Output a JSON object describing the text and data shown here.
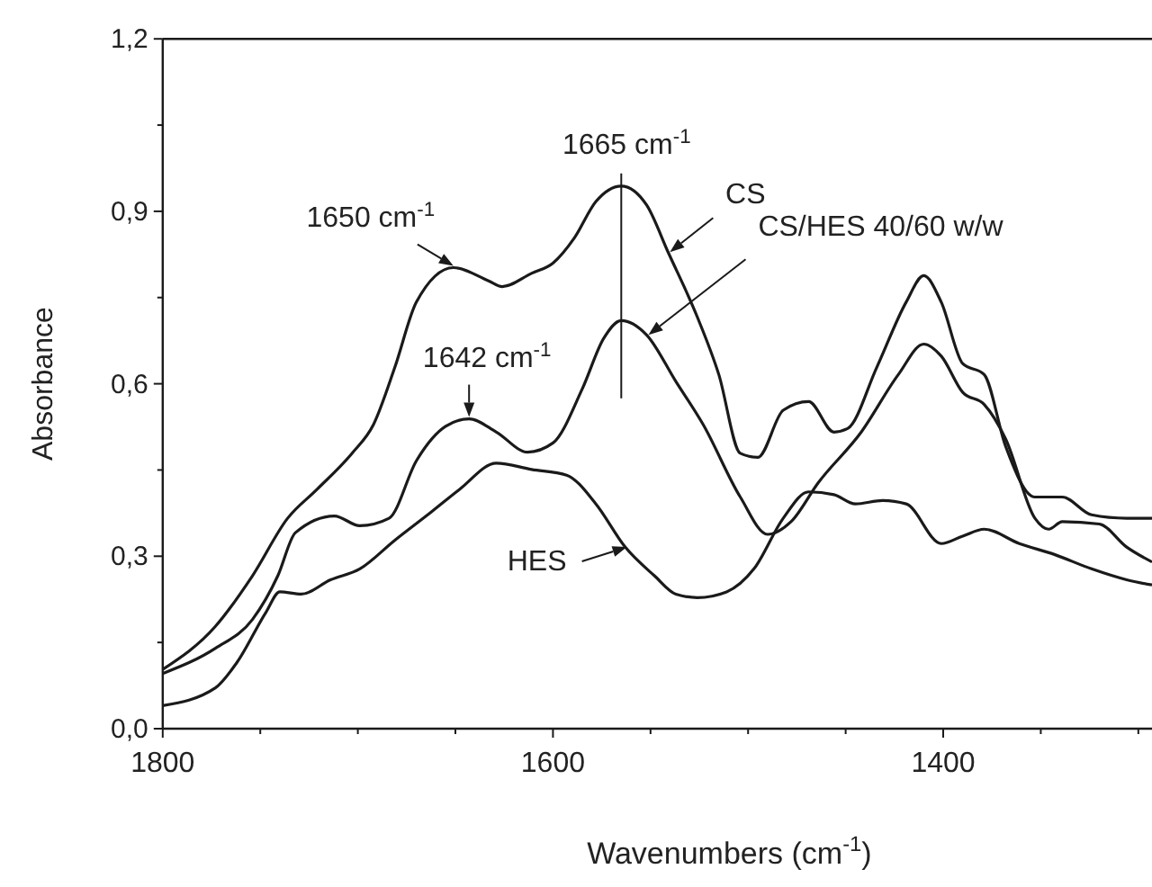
{
  "chart_data": {
    "type": "line",
    "xlabel": "Wavenumbers (cm$^{-1}$)",
    "ylabel": "Absorbance",
    "xlim": [
      1800,
      1293
    ],
    "ylim": [
      0,
      1.2
    ],
    "xticks": [
      1800,
      {
        "value": 1750,
        "label": null
      },
      1600,
      {
        "value": 1700,
        "label": null
      },
      {
        "value": 1650,
        "label": null
      },
      {
        "value": 1550,
        "label": null
      },
      {
        "value": 1500,
        "label": null
      },
      {
        "value": 1450,
        "label": null
      },
      1400,
      {
        "value": 1350,
        "label": null
      },
      {
        "value": 1300,
        "label": null
      }
    ],
    "yticks": [
      {
        "value": 0,
        "label": "0,0"
      },
      {
        "value": 0.15,
        "label": null
      },
      {
        "value": 0.3,
        "label": "0,3"
      },
      {
        "value": 0.45,
        "label": null
      },
      {
        "value": 0.6,
        "label": "0,6"
      },
      {
        "value": 0.75,
        "label": null
      },
      {
        "value": 0.9,
        "label": "0,9"
      },
      {
        "value": 1.05,
        "label": null
      },
      {
        "value": 1.2,
        "label": "1,2"
      }
    ],
    "series": [
      {
        "name": "CS",
        "color": "#1a1a1a",
        "x": [
          1800,
          1773,
          1754,
          1736,
          1721,
          1703,
          1692,
          1681,
          1670,
          1651,
          1633,
          1626,
          1611,
          1600,
          1589,
          1578,
          1565,
          1552,
          1541,
          1526,
          1515,
          1504,
          1495,
          1482,
          1469,
          1456,
          1449,
          1434,
          1419,
          1410,
          1401,
          1390,
          1379,
          1368,
          1353,
          1339,
          1324,
          1306,
          1293
        ],
        "values": [
          0.103,
          0.178,
          0.266,
          0.366,
          0.416,
          0.479,
          0.529,
          0.629,
          0.742,
          0.802,
          0.779,
          0.769,
          0.792,
          0.81,
          0.854,
          0.917,
          0.944,
          0.911,
          0.829,
          0.716,
          0.616,
          0.479,
          0.472,
          0.554,
          0.569,
          0.516,
          0.522,
          0.629,
          0.742,
          0.788,
          0.742,
          0.635,
          0.616,
          0.491,
          0.403,
          0.403,
          0.372,
          0.366,
          0.366
        ]
      },
      {
        "name": "CS/HES 40/60 w/w",
        "color": "#1a1a1a",
        "x": [
          1800,
          1773,
          1754,
          1741,
          1732,
          1712,
          1699,
          1684,
          1670,
          1655,
          1643,
          1629,
          1613,
          1600,
          1585,
          1574,
          1565,
          1552,
          1537,
          1523,
          1504,
          1490,
          1478,
          1464,
          1442,
          1423,
          1410,
          1401,
          1390,
          1379,
          1368,
          1353,
          1346,
          1339,
          1320,
          1306,
          1293
        ],
        "values": [
          0.096,
          0.14,
          0.19,
          0.266,
          0.341,
          0.37,
          0.353,
          0.366,
          0.466,
          0.526,
          0.539,
          0.516,
          0.481,
          0.497,
          0.591,
          0.679,
          0.71,
          0.685,
          0.604,
          0.529,
          0.403,
          0.338,
          0.36,
          0.428,
          0.516,
          0.616,
          0.669,
          0.648,
          0.585,
          0.564,
          0.504,
          0.366,
          0.347,
          0.36,
          0.356,
          0.316,
          0.29
        ]
      },
      {
        "name": "HES",
        "color": "#1a1a1a",
        "x": [
          1800,
          1773,
          1762,
          1747,
          1740,
          1729,
          1714,
          1699,
          1681,
          1662,
          1648,
          1629,
          1611,
          1593,
          1578,
          1563,
          1548,
          1537,
          1526,
          1511,
          1497,
          1482,
          1469,
          1456,
          1445,
          1431,
          1419,
          1401,
          1390,
          1379,
          1361,
          1343,
          1324,
          1306,
          1293
        ],
        "values": [
          0.04,
          0.071,
          0.115,
          0.203,
          0.238,
          0.234,
          0.259,
          0.278,
          0.328,
          0.378,
          0.416,
          0.462,
          0.451,
          0.441,
          0.391,
          0.316,
          0.266,
          0.234,
          0.228,
          0.238,
          0.278,
          0.366,
          0.412,
          0.407,
          0.391,
          0.397,
          0.391,
          0.322,
          0.335,
          0.347,
          0.322,
          0.303,
          0.278,
          0.259,
          0.25
        ]
      }
    ],
    "annotations": [
      {
        "text": "1650 cm$^{-1}$",
        "x": 1651,
        "y": 0.802
      },
      {
        "text": "1642 cm$^{-1}$",
        "x": 1643,
        "y": 0.539
      },
      {
        "text": "1665 cm$^{-1}$",
        "x": 1565,
        "y": 0.944
      }
    ]
  }
}
